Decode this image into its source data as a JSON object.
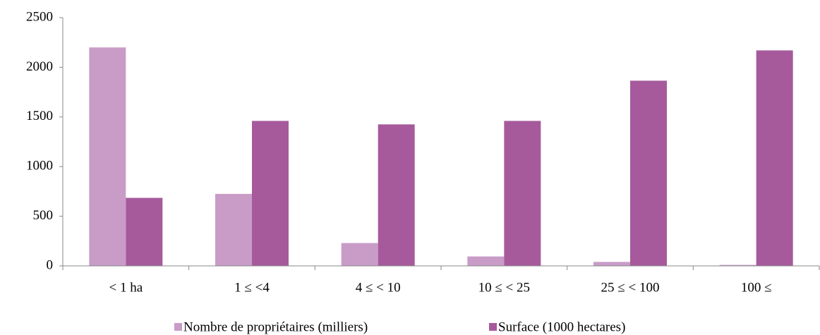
{
  "chart_data": {
    "type": "bar",
    "categories": [
      "< 1 ha",
      "1 ≤ <4",
      "4 ≤ < 10",
      "10 ≤ < 25",
      "25 ≤ < 100",
      "100 ≤"
    ],
    "series": [
      {
        "name": "Nombre de propriétaires (milliers)",
        "color": "#c99cc8",
        "values": [
          2200,
          725,
          230,
          95,
          40,
          10
        ]
      },
      {
        "name": "Surface (1000 hectares)",
        "color": "#a65a9c",
        "values": [
          685,
          1460,
          1425,
          1460,
          1865,
          2170
        ]
      }
    ],
    "ylim": [
      0,
      2500
    ],
    "yticks": [
      0,
      500,
      1000,
      1500,
      2000,
      2500
    ],
    "grid": false,
    "legend": "bottom"
  }
}
